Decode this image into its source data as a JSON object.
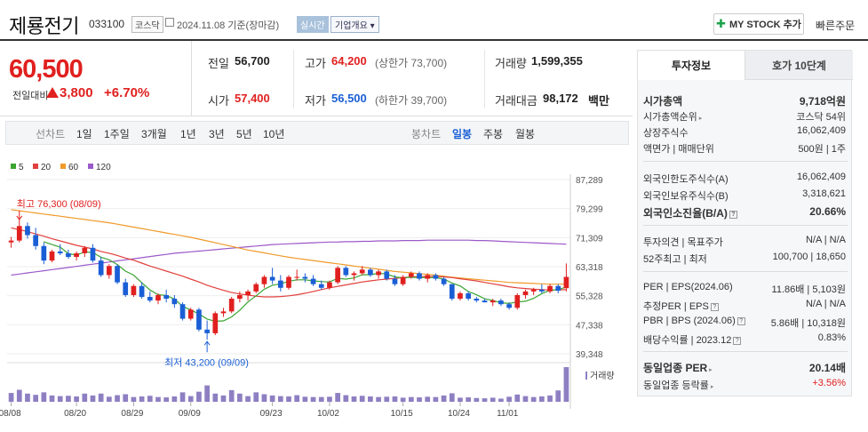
{
  "header": {
    "stock_name": "제룡전기",
    "stock_code": "033100",
    "market": "코스닥",
    "date_text": "2024.11.08 기준(장마감)",
    "realtime_label": "실시간",
    "corp_overview_label": "기업개요",
    "mystock_label": "MY STOCK 추가",
    "quick_order_label": "빠른주문"
  },
  "price": {
    "current": "60,500",
    "change_label": "전일대비",
    "change": "3,800",
    "change_pct": "+6.70%",
    "up_color": "#e0201f",
    "down_color": "#1a5fd6"
  },
  "quote": {
    "prev_label": "전일",
    "prev": "56,700",
    "high_label": "고가",
    "high": "64,200",
    "upper_limit": "(상한가 73,700)",
    "volume_label": "거래량",
    "volume": "1,599,355",
    "open_label": "시가",
    "open": "57,400",
    "low_label": "저가",
    "low": "56,500",
    "lower_limit": "(하한가 39,700)",
    "amount_label": "거래대금",
    "amount": "98,172",
    "amount_unit": "백만"
  },
  "period_bar": {
    "label": "선차트",
    "periods": [
      "1일",
      "1주일",
      "3개월",
      "1년",
      "3년",
      "5년",
      "10년"
    ],
    "candle_label": "봉차트",
    "candle_types": [
      "일봉",
      "주봉",
      "월봉"
    ],
    "active_candle": "일봉"
  },
  "side_panel": {
    "tabs": [
      "투자정보",
      "호가 10단계"
    ],
    "active_tab": "투자정보",
    "market_cap_label": "시가총액",
    "market_cap": "9,718억원",
    "rank_label": "시가총액순위",
    "rank": "코스닥 54위",
    "shares_label": "상장주식수",
    "shares": "16,062,409",
    "par_label": "액면가 | 매매단위",
    "par": "500원 | 1주",
    "foreign_limit_label": "외국인한도주식수(A)",
    "foreign_limit": "16,062,409",
    "foreign_hold_label": "외국인보유주식수(B)",
    "foreign_hold": "3,318,621",
    "foreign_ratio_label": "외국인소진율(B/A)",
    "foreign_ratio": "20.66%",
    "opinion_label": "투자의견 | 목표주가",
    "opinion": "N/A | N/A",
    "week52_label": "52주최고 | 최저",
    "week52": "100,700 | 18,650",
    "per_label": "PER | EPS(2024.06)",
    "per": "11.86배 | 5,103원",
    "est_per_label": "추정PER | EPS",
    "est_per": "N/A | N/A",
    "pbr_label": "PBR | BPS (2024.06)",
    "pbr": "5.86배 | 10,318원",
    "div_label": "배당수익률 | 2023.12",
    "div": "0.83%",
    "ind_per_label": "동일업종 PER",
    "ind_per": "20.14배",
    "ind_chg_label": "동일업종 등락률",
    "ind_chg": "+3.56%"
  },
  "chart_data": {
    "type": "candlestick",
    "legend": [
      {
        "name": "5",
        "color": "#3aa532"
      },
      {
        "name": "20",
        "color": "#e0403c"
      },
      {
        "name": "60",
        "color": "#f09a2a"
      },
      {
        "name": "120",
        "color": "#9b59c9"
      }
    ],
    "y_ticks": [
      "87,289",
      "79,299",
      "71,309",
      "63,318",
      "55,328",
      "47,338",
      "39,348"
    ],
    "y_range": [
      39348,
      87289
    ],
    "x_ticks": [
      "08/08",
      "08/20",
      "08/29",
      "09/09",
      "09/23",
      "10/02",
      "10/15",
      "10/24",
      "11/01"
    ],
    "high_annotation": "최고 76,300 (08/09)",
    "low_annotation": "최저 43,200 (09/09)",
    "volume_label": "거래량",
    "up_color": "#e0201f",
    "down_color": "#1a5fd6",
    "candles": [
      [
        70000,
        71500,
        68500,
        70500
      ],
      [
        70500,
        76300,
        70000,
        74500
      ],
      [
        74500,
        75500,
        71000,
        72000
      ],
      [
        72000,
        74000,
        68000,
        69000
      ],
      [
        69000,
        70000,
        64000,
        65000
      ],
      [
        65000,
        68000,
        64500,
        67500
      ],
      [
        67500,
        69500,
        66500,
        67000
      ],
      [
        67000,
        68000,
        65500,
        66000
      ],
      [
        66000,
        67500,
        65000,
        67000
      ],
      [
        67000,
        69000,
        66000,
        68500
      ],
      [
        68500,
        69500,
        64500,
        65000
      ],
      [
        65000,
        66000,
        60500,
        61000
      ],
      [
        61000,
        64000,
        60000,
        63500
      ],
      [
        63500,
        64000,
        58500,
        59000
      ],
      [
        59000,
        60000,
        55000,
        55500
      ],
      [
        55500,
        58500,
        55000,
        58000
      ],
      [
        58000,
        59000,
        54500,
        55000
      ],
      [
        55000,
        56500,
        53500,
        54000
      ],
      [
        54000,
        56000,
        53000,
        55500
      ],
      [
        55500,
        57000,
        53500,
        54500
      ],
      [
        54500,
        55500,
        52000,
        53000
      ],
      [
        53000,
        53500,
        48500,
        49000
      ],
      [
        49000,
        52000,
        48500,
        51500
      ],
      [
        51500,
        52000,
        45500,
        46000
      ],
      [
        46000,
        48500,
        43200,
        45000
      ],
      [
        45000,
        51000,
        44500,
        50500
      ],
      [
        50500,
        52000,
        49500,
        51000
      ],
      [
        51000,
        55000,
        50500,
        54500
      ],
      [
        54500,
        56500,
        53500,
        55500
      ],
      [
        55500,
        57000,
        54000,
        56500
      ],
      [
        56500,
        59000,
        56000,
        58500
      ],
      [
        58500,
        61000,
        57500,
        60500
      ],
      [
        60500,
        63000,
        58500,
        59500
      ],
      [
        59500,
        61000,
        56500,
        57500
      ],
      [
        57500,
        61000,
        57000,
        60500
      ],
      [
        60500,
        62500,
        59500,
        60500
      ],
      [
        60500,
        61500,
        59000,
        60000
      ],
      [
        60000,
        61000,
        58000,
        58500
      ],
      [
        58500,
        59500,
        57000,
        57500
      ],
      [
        57500,
        59500,
        57000,
        59000
      ],
      [
        59000,
        63500,
        58500,
        63000
      ],
      [
        63000,
        63500,
        60500,
        61000
      ],
      [
        61000,
        62000,
        59500,
        61500
      ],
      [
        61500,
        63500,
        61000,
        62500
      ],
      [
        62500,
        63000,
        60500,
        61000
      ],
      [
        61000,
        62500,
        60000,
        62000
      ],
      [
        62000,
        62500,
        59500,
        60000
      ],
      [
        60000,
        61000,
        58000,
        58500
      ],
      [
        58500,
        61000,
        58000,
        60500
      ],
      [
        60500,
        62000,
        60000,
        61500
      ],
      [
        61500,
        62000,
        59500,
        60000
      ],
      [
        60000,
        61500,
        59000,
        61000
      ],
      [
        61000,
        61500,
        59500,
        60000
      ],
      [
        60000,
        60500,
        58000,
        58500
      ],
      [
        58500,
        58500,
        54000,
        54500
      ],
      [
        54500,
        56500,
        54000,
        56000
      ],
      [
        56000,
        56500,
        54000,
        54500
      ],
      [
        54500,
        55000,
        53500,
        54000
      ],
      [
        54000,
        54500,
        53500,
        53500
      ],
      [
        53500,
        54500,
        52500,
        54000
      ],
      [
        54000,
        54500,
        52500,
        53000
      ],
      [
        53000,
        53500,
        51500,
        52000
      ],
      [
        52000,
        56000,
        51500,
        55500
      ],
      [
        55500,
        57000,
        54500,
        56500
      ],
      [
        56500,
        57500,
        55500,
        57000
      ],
      [
        57000,
        58500,
        56000,
        56500
      ],
      [
        56500,
        58500,
        56000,
        58000
      ],
      [
        58000,
        58500,
        56000,
        56700
      ],
      [
        57400,
        64200,
        56500,
        60500
      ]
    ],
    "volumes": [
      280,
      380,
      260,
      220,
      300,
      200,
      180,
      190,
      170,
      260,
      200,
      260,
      160,
      210,
      240,
      150,
      170,
      190,
      150,
      140,
      170,
      300,
      180,
      320,
      520,
      260,
      200,
      370,
      260,
      180,
      300,
      240,
      200,
      180,
      170,
      210,
      160,
      150,
      150,
      160,
      280,
      210,
      170,
      190,
      170,
      150,
      160,
      170,
      130,
      150,
      140,
      160,
      150,
      200,
      270,
      130,
      140,
      120,
      110,
      130,
      100,
      160,
      230,
      180,
      150,
      170,
      200,
      360,
      1100
    ],
    "ma5": [
      null,
      null,
      null,
      null,
      70200,
      69400,
      68700,
      66900,
      66500,
      67400,
      67200,
      65900,
      65200,
      63900,
      62100,
      61000,
      58900,
      56900,
      55600,
      55400,
      54400,
      52400,
      51400,
      50300,
      48900,
      48300,
      48400,
      49500,
      51300,
      53600,
      55300,
      57100,
      58200,
      58600,
      59300,
      59700,
      59700,
      59400,
      59200,
      59100,
      60100,
      59900,
      60200,
      61100,
      61100,
      61500,
      61300,
      60500,
      60200,
      60400,
      60300,
      60300,
      60300,
      59900,
      58800,
      58000,
      56500,
      55600,
      54500,
      54000,
      53400,
      53200,
      53600,
      53800,
      54600,
      55900,
      56800,
      57000,
      57700
    ],
    "ma20": [
      74000,
      73500,
      73000,
      72300,
      71700,
      71000,
      70400,
      69800,
      69200,
      68700,
      68200,
      67500,
      67000,
      66400,
      65700,
      65100,
      64300,
      63500,
      62800,
      62100,
      61400,
      60700,
      59900,
      59100,
      58200,
      57500,
      56800,
      56200,
      55800,
      55500,
      55200,
      55000,
      55000,
      55100,
      55300,
      55600,
      56000,
      56500,
      57000,
      57500,
      57900,
      58300,
      58700,
      59100,
      59400,
      59700,
      59900,
      60100,
      60300,
      60500,
      60600,
      60600,
      60600,
      60500,
      60300,
      60000,
      59700,
      59400,
      59000,
      58600,
      58200,
      57800,
      57500,
      57300,
      57100,
      57000,
      56900,
      56900,
      57000
    ],
    "ma60": [
      79000,
      78700,
      78400,
      78100,
      77800,
      77500,
      77200,
      76900,
      76600,
      76300,
      76000,
      75700,
      75400,
      75000,
      74600,
      74200,
      73800,
      73400,
      73000,
      72600,
      72200,
      71800,
      71400,
      70900,
      70400,
      69900,
      69400,
      68900,
      68400,
      67900,
      67500,
      67100,
      66700,
      66300,
      65900,
      65600,
      65300,
      65000,
      64700,
      64400,
      64100,
      63800,
      63500,
      63200,
      62900,
      62600,
      62300,
      62000,
      61800,
      61600,
      61400,
      61200,
      61000,
      60700,
      60400,
      60200,
      60000,
      59800,
      59600,
      59400,
      59200,
      59000,
      58900,
      58800,
      58700,
      58600,
      58500,
      58500,
      58500
    ],
    "ma120": [
      61000,
      61300,
      61600,
      61900,
      62200,
      62500,
      62800,
      63100,
      63400,
      63700,
      64000,
      64300,
      64600,
      64900,
      65200,
      65500,
      65800,
      66100,
      66400,
      66700,
      67000,
      67200,
      67400,
      67600,
      67800,
      68000,
      68200,
      68400,
      68600,
      68800,
      69000,
      69200,
      69400,
      69500,
      69600,
      69700,
      69800,
      69900,
      70000,
      70100,
      70100,
      70200,
      70200,
      70300,
      70300,
      70400,
      70400,
      70400,
      70500,
      70500,
      70500,
      70600,
      70600,
      70600,
      70600,
      70600,
      70600,
      70500,
      70500,
      70400,
      70300,
      70200,
      70100,
      70000,
      69900,
      69800,
      69700,
      69600,
      69500
    ]
  }
}
